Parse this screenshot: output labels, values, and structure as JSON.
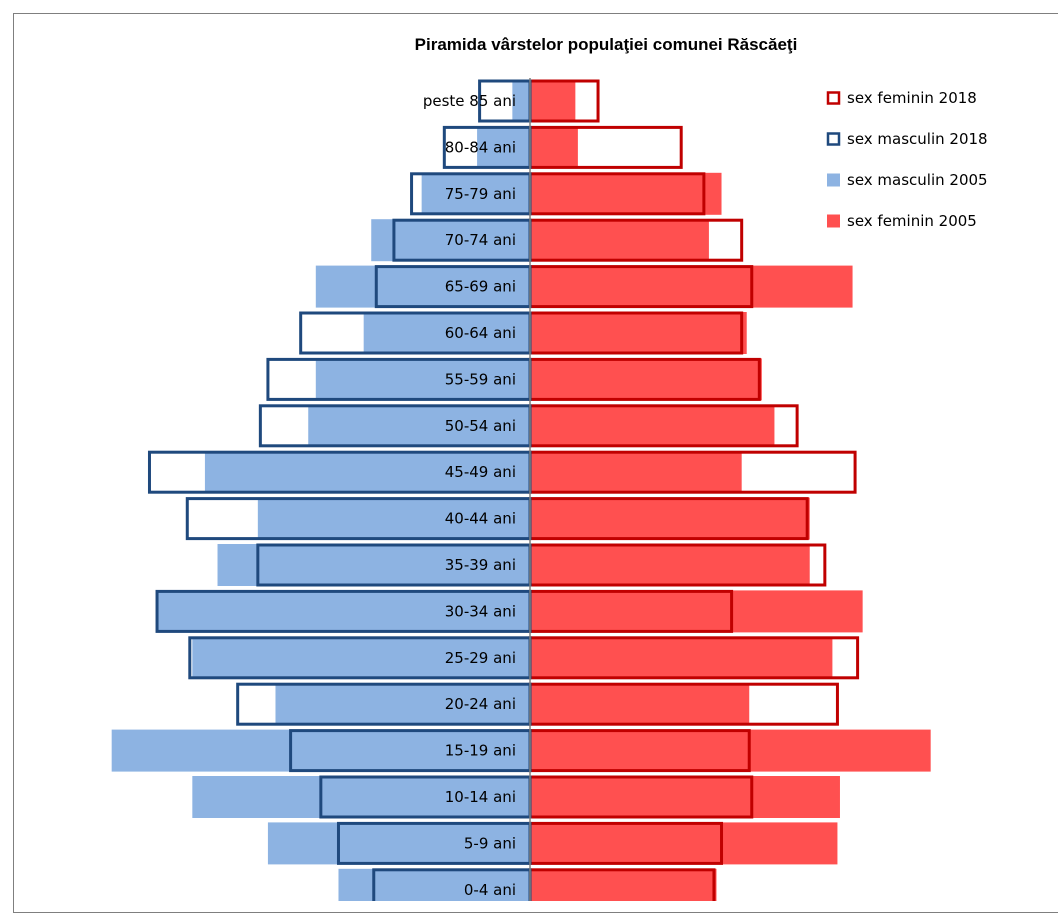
{
  "chart_data": {
    "type": "bar",
    "orientation": "horizontal-pyramid",
    "title": "Piramida vârstelor populaţiei comunei  Răscăeţi",
    "categories": [
      "peste 85 ani",
      "80-84 ani",
      "75-79 ani",
      "70-74 ani",
      "65-69 ani",
      "60-64 ani",
      "55-59 ani",
      "50-54 ani",
      "45-49 ani",
      "40-44 ani",
      "35-39 ani",
      "30-34 ani",
      "25-29 ani",
      "20-24 ani",
      "15-19 ani",
      "10-14 ani",
      "5-9 ani",
      "0-4 ani"
    ],
    "series": [
      {
        "name": "sex feminin 2018",
        "side": "right",
        "style": "outline",
        "color": "#c00000",
        "values": [
          27,
          60,
          69,
          84,
          88,
          84,
          91,
          106,
          129,
          110,
          117,
          80,
          130,
          122,
          87,
          88,
          76,
          73
        ]
      },
      {
        "name": "sex masculin 2018",
        "side": "left",
        "style": "outline",
        "color": "#1f497d",
        "values": [
          20,
          34,
          47,
          54,
          61,
          91,
          104,
          107,
          151,
          136,
          108,
          148,
          135,
          116,
          95,
          83,
          76,
          62
        ]
      },
      {
        "name": "sex masculin 2005",
        "side": "left",
        "style": "fill",
        "color": "#8db3e2",
        "values": [
          7,
          21,
          43,
          63,
          85,
          66,
          85,
          88,
          129,
          108,
          124,
          148,
          134,
          101,
          166,
          134,
          104,
          76
        ]
      },
      {
        "name": "sex feminin 2005",
        "side": "right",
        "style": "fill",
        "color": "#ff5050",
        "values": [
          18,
          19,
          76,
          71,
          128,
          86,
          92,
          97,
          84,
          111,
          111,
          132,
          120,
          87,
          159,
          123,
          122,
          74
        ]
      }
    ],
    "legend_position": "top-right",
    "grid": false
  }
}
